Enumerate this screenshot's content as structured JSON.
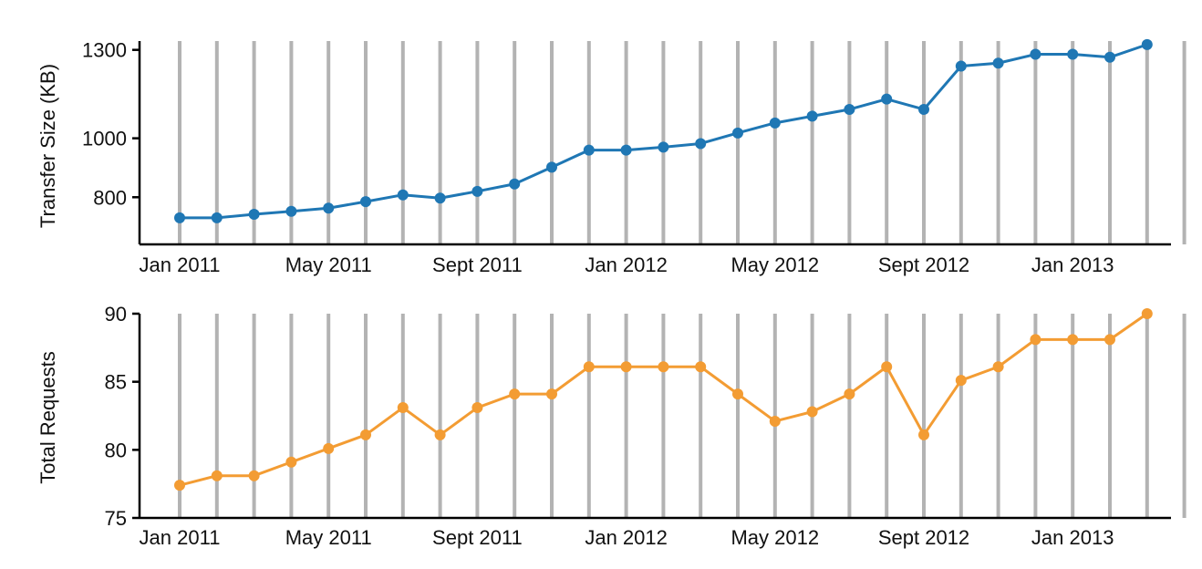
{
  "chart_data": [
    {
      "type": "line",
      "title": "",
      "xlabel": "",
      "ylabel": "Transfer Size (KB)",
      "color": "#1f77b4",
      "x": [
        "2011-01",
        "2011-02",
        "2011-03",
        "2011-04",
        "2011-05",
        "2011-06",
        "2011-07",
        "2011-08",
        "2011-09",
        "2011-10",
        "2011-11",
        "2011-12",
        "2012-01",
        "2012-02",
        "2012-03",
        "2012-04",
        "2012-05",
        "2012-06",
        "2012-07",
        "2012-08",
        "2012-09",
        "2012-10",
        "2012-11",
        "2012-12",
        "2013-01",
        "2013-02",
        "2013-03",
        "2013-04"
      ],
      "x_tick_labels": [
        "Jan 2011",
        "May 2011",
        "Sept 2011",
        "Jan 2012",
        "May 2012",
        "Sept 2012",
        "Jan 2013"
      ],
      "y_ticks": [
        800,
        1000,
        1300
      ],
      "y_tick_labels": [
        "800",
        "1000",
        "1300"
      ],
      "ylim": [
        640,
        1330
      ],
      "values": [
        730,
        730,
        742,
        752,
        763,
        785,
        808,
        797,
        820,
        845,
        902,
        960,
        960,
        970,
        982,
        1018,
        1052,
        1075,
        1098,
        1133,
        1098,
        1245,
        1255,
        1285,
        1285,
        1275,
        1318,
        null
      ],
      "grid": true,
      "grid_axis": "x",
      "legend": "none"
    },
    {
      "type": "line",
      "title": "",
      "xlabel": "",
      "ylabel": "Total Requests",
      "color": "#f39c33",
      "x": [
        "2011-01",
        "2011-02",
        "2011-03",
        "2011-04",
        "2011-05",
        "2011-06",
        "2011-07",
        "2011-08",
        "2011-09",
        "2011-10",
        "2011-11",
        "2011-12",
        "2012-01",
        "2012-02",
        "2012-03",
        "2012-04",
        "2012-05",
        "2012-06",
        "2012-07",
        "2012-08",
        "2012-09",
        "2012-10",
        "2012-11",
        "2012-12",
        "2013-01",
        "2013-02",
        "2013-03",
        "2013-04"
      ],
      "x_tick_labels": [
        "Jan 2011",
        "May 2011",
        "Sept 2011",
        "Jan 2012",
        "May 2012",
        "Sept 2012",
        "Jan 2013"
      ],
      "y_ticks": [
        75,
        80,
        85,
        90
      ],
      "y_tick_labels": [
        "75",
        "80",
        "85",
        "90"
      ],
      "ylim": [
        75,
        90
      ],
      "values": [
        77.4,
        78.1,
        78.1,
        79.1,
        80.1,
        81.1,
        83.1,
        81.1,
        83.1,
        84.1,
        84.1,
        86.1,
        86.1,
        86.1,
        86.1,
        84.1,
        82.1,
        82.8,
        84.1,
        86.1,
        81.1,
        85.1,
        86.1,
        88.1,
        88.1,
        88.1,
        90.0,
        null
      ],
      "grid": true,
      "grid_axis": "x",
      "legend": "none"
    }
  ]
}
